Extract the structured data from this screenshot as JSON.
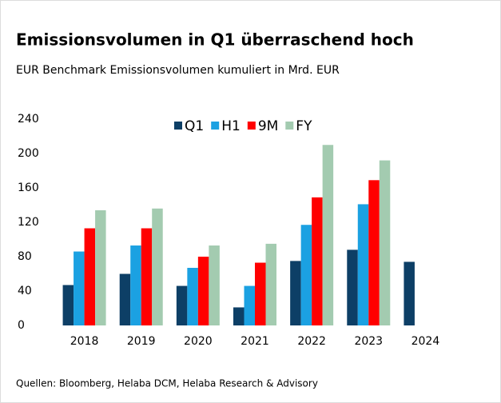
{
  "chart_data": {
    "type": "bar",
    "title": "Emissionsvolumen in Q1 überraschend hoch",
    "subtitle": "EUR Benchmark Emissionsvolumen kumuliert in Mrd. EUR",
    "source": "Quellen: Bloomberg, Helaba DCM, Helaba Research & Advisory",
    "categories": [
      "2018",
      "2019",
      "2020",
      "2021",
      "2022",
      "2023",
      "2024"
    ],
    "series": [
      {
        "name": "Q1",
        "color": "#0d3f66",
        "values": [
          47,
          60,
          46,
          21,
          75,
          88,
          74
        ]
      },
      {
        "name": "H1",
        "color": "#1ba1e2",
        "values": [
          86,
          93,
          67,
          46,
          117,
          141,
          null
        ]
      },
      {
        "name": "9M",
        "color": "#ff0000",
        "values": [
          113,
          113,
          80,
          73,
          149,
          169,
          null
        ]
      },
      {
        "name": "FY",
        "color": "#a3cbb0",
        "values": [
          134,
          136,
          93,
          95,
          210,
          192,
          null
        ]
      }
    ],
    "ylim": [
      0,
      240
    ],
    "yticks": [
      0,
      40,
      80,
      120,
      160,
      200,
      240
    ],
    "grid": false,
    "legend": "top"
  }
}
